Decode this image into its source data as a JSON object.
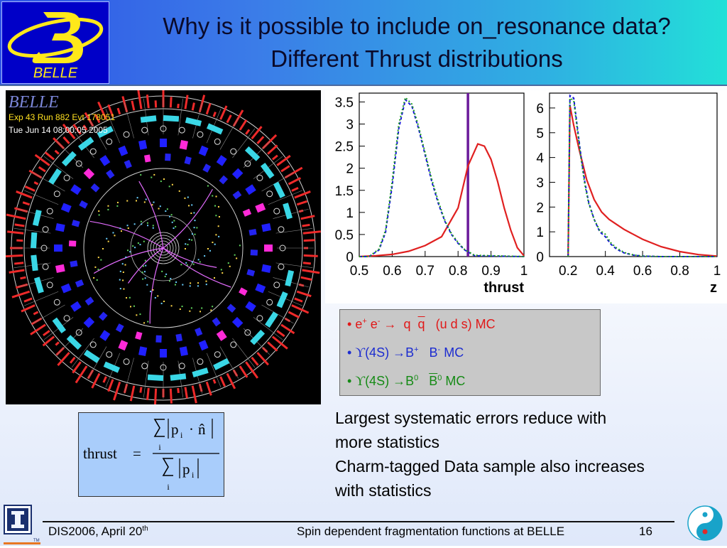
{
  "header": {
    "title_line1": "Why is it possible to include on_resonance data?",
    "title_line2": "Different Thrust distributions",
    "logo_text": "BELLE"
  },
  "event_display": {
    "label": "BELLE",
    "line1": "Exp 43 Run 882 Evt 178051",
    "line2": "Tue Jun 14 08:00:05 2005"
  },
  "chart_data": [
    {
      "type": "line",
      "xlabel": "thrust",
      "xlim": [
        0.5,
        1.0
      ],
      "ylim": [
        0,
        3.7
      ],
      "x_ticks": [
        "0.5",
        "0.6",
        "0.7",
        "0.8",
        "0.9",
        "1"
      ],
      "y_ticks": [
        "0",
        "0.5",
        "1",
        "1.5",
        "2",
        "2.5",
        "3",
        "3.5"
      ],
      "cut_line_x": 0.83,
      "series": [
        {
          "color": "#e02020",
          "x": [
            0.5,
            0.55,
            0.6,
            0.65,
            0.7,
            0.75,
            0.8,
            0.83,
            0.86,
            0.88,
            0.9,
            0.92,
            0.94,
            0.96,
            0.98,
            1.0
          ],
          "values": [
            0,
            0.02,
            0.05,
            0.12,
            0.25,
            0.45,
            1.1,
            2.05,
            2.55,
            2.5,
            2.2,
            1.7,
            1.1,
            0.6,
            0.2,
            0.02
          ]
        },
        {
          "color": "#1818d8",
          "x": [
            0.5,
            0.53,
            0.56,
            0.58,
            0.6,
            0.62,
            0.64,
            0.66,
            0.68,
            0.7,
            0.72,
            0.74,
            0.76,
            0.78,
            0.8,
            0.82,
            0.85,
            1.0
          ],
          "values": [
            0,
            0.0,
            0.15,
            0.55,
            1.6,
            2.9,
            3.55,
            3.4,
            2.9,
            2.3,
            1.7,
            1.2,
            0.8,
            0.5,
            0.3,
            0.15,
            0.02,
            0
          ]
        },
        {
          "color": "#1e9e1e",
          "x": [
            0.5,
            0.53,
            0.56,
            0.58,
            0.6,
            0.62,
            0.64,
            0.66,
            0.68,
            0.7,
            0.72,
            0.74,
            0.76,
            0.78,
            0.8,
            0.82,
            0.85,
            1.0
          ],
          "values": [
            0,
            0.0,
            0.17,
            0.6,
            1.7,
            3.0,
            3.6,
            3.45,
            2.95,
            2.35,
            1.75,
            1.25,
            0.82,
            0.52,
            0.32,
            0.16,
            0.03,
            0
          ]
        }
      ]
    },
    {
      "type": "line",
      "xlabel": "z",
      "xlim": [
        0.1,
        1.0
      ],
      "ylim": [
        0,
        6.6
      ],
      "x_ticks": [
        "0.2",
        "0.4",
        "0.6",
        "0.8",
        "1"
      ],
      "y_ticks": [
        "0",
        "1",
        "2",
        "3",
        "4",
        "5",
        "6"
      ],
      "series": [
        {
          "color": "#e02020",
          "x": [
            0.2,
            0.21,
            0.23,
            0.26,
            0.3,
            0.34,
            0.38,
            0.42,
            0.46,
            0.5,
            0.6,
            0.7,
            0.8,
            0.9,
            1.0
          ],
          "values": [
            0,
            6.1,
            5.3,
            4.3,
            3.1,
            2.3,
            1.8,
            1.5,
            1.3,
            1.1,
            0.7,
            0.4,
            0.2,
            0.08,
            0.02
          ]
        },
        {
          "color": "#1818d8",
          "x": [
            0.2,
            0.21,
            0.23,
            0.25,
            0.27,
            0.29,
            0.31,
            0.34,
            0.37,
            0.4,
            0.43,
            0.46,
            0.5,
            0.55,
            0.6,
            0.7,
            1.0
          ],
          "values": [
            0,
            6.5,
            6.4,
            5.2,
            4.0,
            3.0,
            2.2,
            1.5,
            1.0,
            0.8,
            0.5,
            0.3,
            0.15,
            0.06,
            0.02,
            0,
            0
          ]
        },
        {
          "color": "#1e9e1e",
          "x": [
            0.2,
            0.21,
            0.23,
            0.25,
            0.27,
            0.29,
            0.31,
            0.34,
            0.37,
            0.4,
            0.43,
            0.46,
            0.5,
            0.55,
            0.6,
            0.7,
            1.0
          ],
          "values": [
            0,
            6.4,
            6.3,
            5.1,
            3.9,
            2.9,
            2.15,
            1.5,
            1.05,
            0.9,
            0.55,
            0.35,
            0.17,
            0.07,
            0.02,
            0,
            0
          ]
        }
      ]
    }
  ],
  "legend": {
    "line1": {
      "bullet": "•",
      "e": "e",
      "plus": "+",
      "sp": " ",
      "e2": "e",
      "minus": "-",
      "arrow": "→",
      "q": "q",
      "qbar": "q",
      "tail": "(u d s)  MC"
    },
    "line2": {
      "bullet": "•",
      "upsilon": "ϒ",
      "s4": "(4S) →B",
      "plus": "+",
      "b": "B",
      "minus": "-",
      "tail": " MC"
    },
    "line3": {
      "bullet": "•",
      "upsilon": "ϒ",
      "s4": "(4S) →B",
      "zero": "0",
      "b": "B",
      "zero2": "0",
      "tail": " MC"
    }
  },
  "formula": {
    "lhs": "thrust",
    "equals": "=",
    "p": "p",
    "i": "i",
    "dot": "·",
    "n": "n̂"
  },
  "notes": {
    "line1": "Largest systematic errors reduce with",
    "line2": "more statistics",
    "line3": "Charm-tagged Data sample also increases",
    "line4": "with statistics"
  },
  "footer": {
    "left": "DIS2006, April 20",
    "left_sup": "th",
    "middle": "Spin dependent fragmentation functions at BELLE",
    "page": "16",
    "uiuc_tm": "TM"
  }
}
